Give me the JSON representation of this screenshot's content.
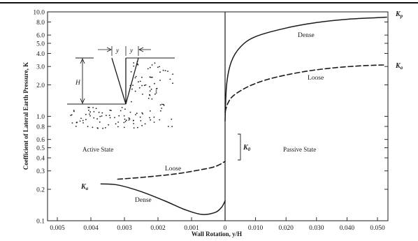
{
  "chart_data": {
    "type": "line",
    "xlabel": "Wall Rotation, y/H",
    "ylabel": "Coefficient of Lateral Earth Pressure, K",
    "yscale": "log",
    "ylim": [
      0.1,
      10.0
    ],
    "y_ticks": [
      0.1,
      0.2,
      0.3,
      0.4,
      0.5,
      0.6,
      0.8,
      1.0,
      2.0,
      3.0,
      4.0,
      5.0,
      6.0,
      8.0,
      10.0
    ],
    "y_tick_labels": [
      "0.1",
      "0.2",
      "0.3",
      "0.4",
      "0.5",
      "0.6",
      "0.8",
      "1.0",
      "2.0",
      "3.0",
      "4.0",
      "5.0",
      "6.0",
      "8.0",
      "10.0"
    ],
    "left_x_ticks": [
      -0.005,
      -0.004,
      -0.003,
      -0.002,
      -0.001,
      0
    ],
    "left_x_tick_labels": [
      "0.005",
      "0.004",
      "0.003",
      "0.002",
      "0.001",
      "0"
    ],
    "right_x_ticks": [
      0.01,
      0.02,
      0.03,
      0.04,
      0.05
    ],
    "right_x_tick_labels": [
      "0.010",
      "0.020",
      "0.030",
      "0.040",
      "0.050"
    ],
    "grid": false,
    "series": [
      {
        "name": "Dense",
        "style": "solid",
        "active": [
          [
            -0.0037,
            0.225
          ],
          [
            -0.0032,
            0.22
          ],
          [
            -0.0025,
            0.19
          ],
          [
            -0.0018,
            0.155
          ],
          [
            -0.0012,
            0.128
          ],
          [
            -0.0007,
            0.115
          ],
          [
            -0.0003,
            0.12
          ],
          [
            -0.0001,
            0.135
          ],
          [
            0,
            0.155
          ]
        ],
        "passive": [
          [
            0,
            0.9
          ],
          [
            0.0005,
            2.0
          ],
          [
            0.002,
            3.3
          ],
          [
            0.005,
            4.6
          ],
          [
            0.01,
            5.8
          ],
          [
            0.02,
            7.0
          ],
          [
            0.03,
            7.9
          ],
          [
            0.04,
            8.5
          ],
          [
            0.05,
            8.8
          ],
          [
            0.053,
            8.9
          ]
        ]
      },
      {
        "name": "Loose",
        "style": "dashed",
        "active": [
          [
            -0.0032,
            0.25
          ],
          [
            -0.0025,
            0.26
          ],
          [
            -0.0015,
            0.28
          ],
          [
            -0.0008,
            0.305
          ],
          [
            -0.0003,
            0.33
          ],
          [
            0,
            0.37
          ]
        ],
        "passive": [
          [
            0,
            1.1
          ],
          [
            0.001,
            1.35
          ],
          [
            0.003,
            1.6
          ],
          [
            0.008,
            1.95
          ],
          [
            0.015,
            2.3
          ],
          [
            0.025,
            2.65
          ],
          [
            0.035,
            2.9
          ],
          [
            0.045,
            3.05
          ],
          [
            0.052,
            3.1
          ]
        ]
      }
    ],
    "annotations": {
      "active_state": "Active State",
      "passive_state": "Passive State",
      "dense_active": "Dense",
      "dense_passive": "Dense",
      "loose_active": "Loose",
      "loose_passive": "Loose",
      "k0": "K",
      "k0_sub": "0",
      "ka": "K",
      "ka_sub": "a",
      "kp_dense": "K",
      "kp_dense_sub": "p",
      "kp_loose": "K",
      "kp_loose_sub": "a"
    },
    "inset": {
      "y_left": "y",
      "y_right": "y",
      "h": "H"
    }
  },
  "colors": {
    "line": "#1a1a1a",
    "background": "#ffffff"
  }
}
